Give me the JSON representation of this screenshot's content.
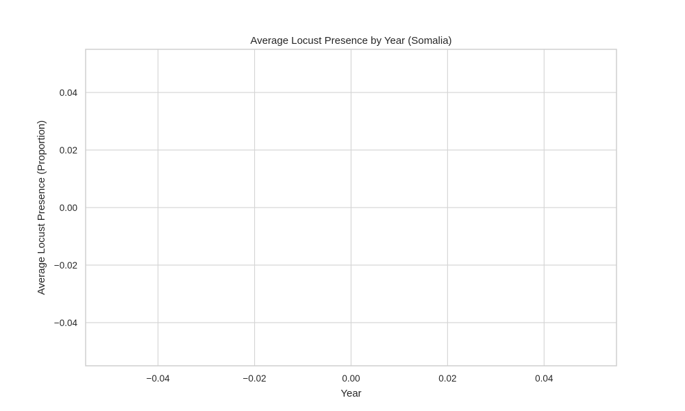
{
  "chart_data": {
    "type": "line",
    "title": "Average Locust Presence by Year (Somalia)",
    "xlabel": "Year",
    "ylabel": "Average Locust Presence (Proportion)",
    "xlim": [
      -0.055,
      0.055
    ],
    "ylim": [
      -0.055,
      0.055
    ],
    "x_ticks": [
      -0.04,
      -0.02,
      0.0,
      0.02,
      0.04
    ],
    "x_tick_labels": [
      "−0.04",
      "−0.02",
      "0.00",
      "0.02",
      "0.04"
    ],
    "y_ticks": [
      -0.04,
      -0.02,
      0.0,
      0.02,
      0.04
    ],
    "y_tick_labels": [
      "−0.04",
      "−0.02",
      "0.00",
      "0.02",
      "0.04"
    ],
    "grid": true,
    "series": []
  }
}
